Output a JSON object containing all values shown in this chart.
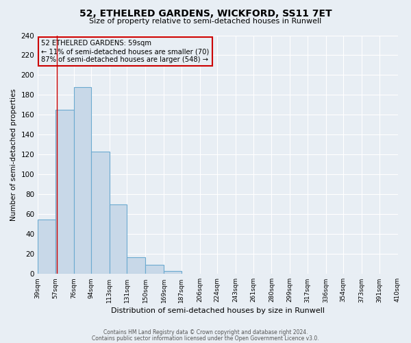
{
  "title": "52, ETHELRED GARDENS, WICKFORD, SS11 7ET",
  "subtitle": "Size of property relative to semi-detached houses in Runwell",
  "xlabel": "Distribution of semi-detached houses by size in Runwell",
  "ylabel": "Number of semi-detached properties",
  "bin_edges": [
    39,
    57,
    76,
    94,
    113,
    131,
    150,
    169,
    187,
    206,
    224,
    243,
    261,
    280,
    299,
    317,
    336,
    354,
    373,
    391,
    410
  ],
  "bin_counts": [
    55,
    165,
    188,
    123,
    70,
    17,
    9,
    3,
    0,
    0,
    0,
    0,
    0,
    0,
    0,
    0,
    0,
    0,
    0,
    0
  ],
  "bar_facecolor": "#c8d8e8",
  "bar_edgecolor": "#6baad0",
  "red_line_x": 59,
  "annotation_title": "52 ETHELRED GARDENS: 59sqm",
  "annotation_line1": "← 11% of semi-detached houses are smaller (70)",
  "annotation_line2": "87% of semi-detached houses are larger (548) →",
  "annotation_box_edgecolor": "#cc0000",
  "ylim": [
    0,
    240
  ],
  "yticks": [
    0,
    20,
    40,
    60,
    80,
    100,
    120,
    140,
    160,
    180,
    200,
    220,
    240
  ],
  "tick_labels": [
    "39sqm",
    "57sqm",
    "76sqm",
    "94sqm",
    "113sqm",
    "131sqm",
    "150sqm",
    "169sqm",
    "187sqm",
    "206sqm",
    "224sqm",
    "243sqm",
    "261sqm",
    "280sqm",
    "299sqm",
    "317sqm",
    "336sqm",
    "354sqm",
    "373sqm",
    "391sqm",
    "410sqm"
  ],
  "footer1": "Contains HM Land Registry data © Crown copyright and database right 2024.",
  "footer2": "Contains public sector information licensed under the Open Government Licence v3.0.",
  "background_color": "#e8eef4",
  "grid_color": "#ffffff",
  "red_line_color": "#cc0000"
}
